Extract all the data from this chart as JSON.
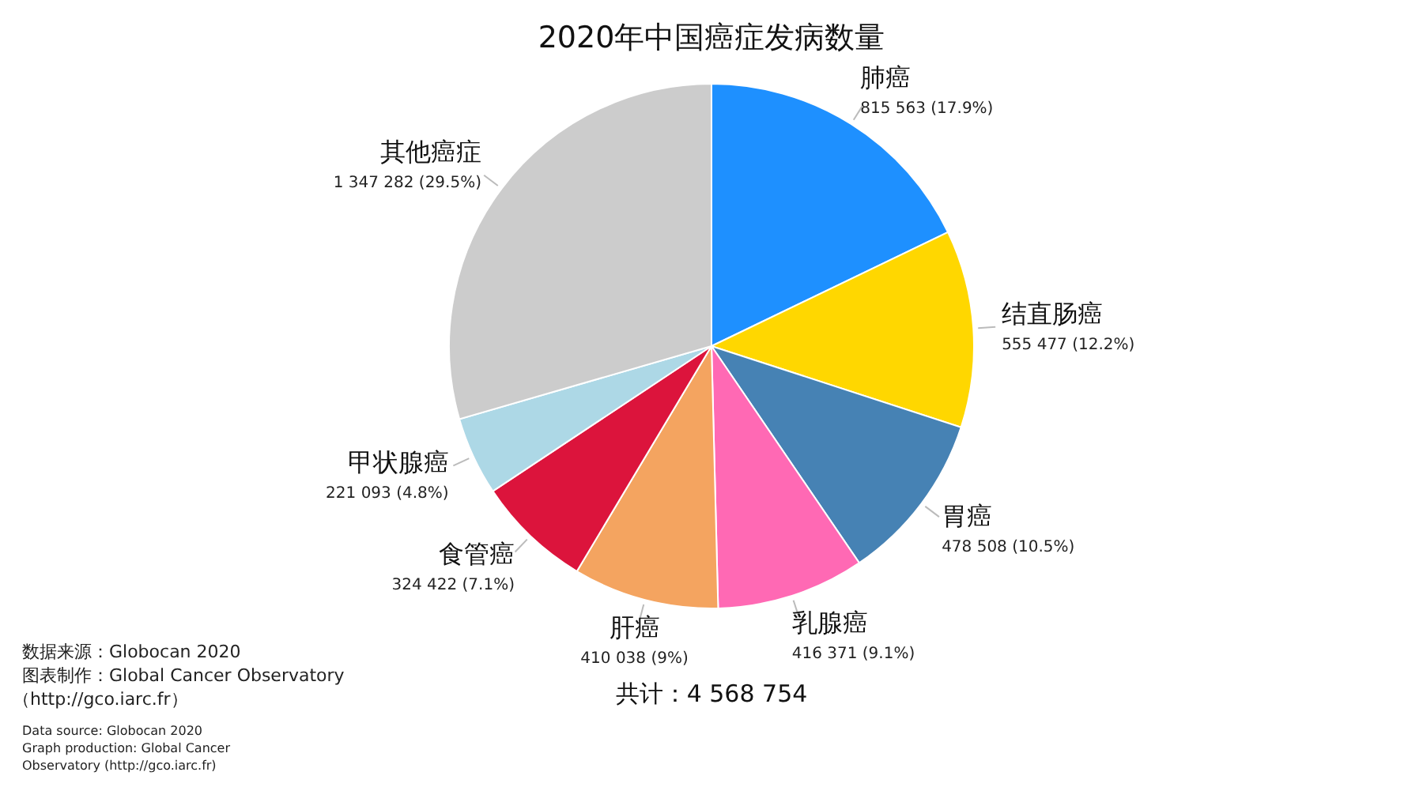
{
  "chart_data": {
    "type": "pie",
    "title": "2020年中国癌症发病数量",
    "categories": [
      "肺癌",
      "结直肠癌",
      "胃癌",
      "乳腺癌",
      "肝癌",
      "食管癌",
      "甲状腺癌",
      "其他癌症"
    ],
    "values": [
      815563,
      555477,
      478508,
      416371,
      410038,
      324422,
      221093,
      1347282
    ],
    "value_labels": [
      "815 563 (17.9%)",
      "555 477 (12.2%)",
      "478 508 (10.5%)",
      "416 371 (9.1%)",
      "410 038 (9%)",
      "324 422 (7.1%)",
      "221 093 (4.8%)",
      "1 347 282 (29.5%)"
    ],
    "colors": [
      "#1e90ff",
      "#ffd700",
      "#4682b4",
      "#ff69b4",
      "#f4a460",
      "#dc143c",
      "#add8e6",
      "#cccccc"
    ],
    "annotations": [
      "共计：4 568 754",
      "数据来源：Globocan 2020\n图表制作：Global Cancer Observatory\n（http://gco.iarc.fr）",
      "Data source: Globocan 2020\nGraph production: Global Cancer\nObservatory (http://gco.iarc.fr)"
    ]
  }
}
